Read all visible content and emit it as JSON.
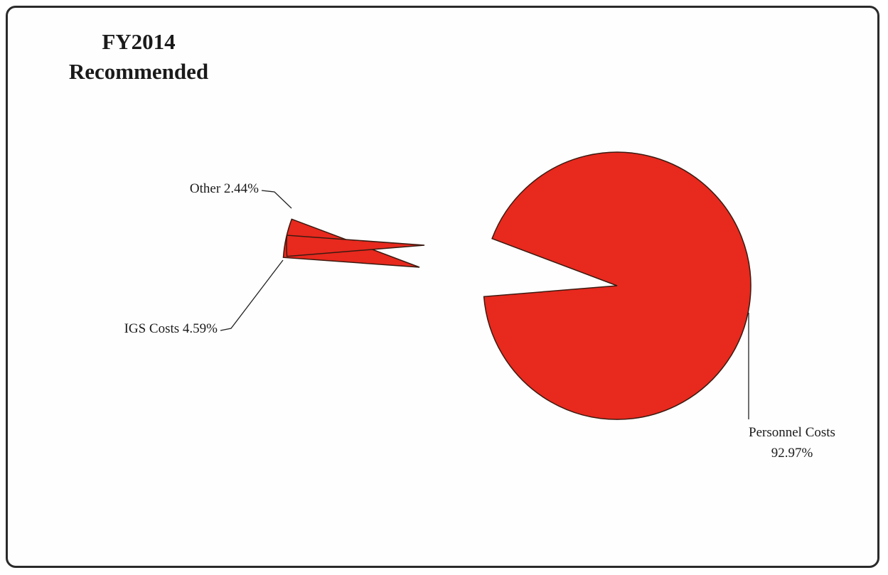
{
  "chart_data": {
    "type": "pie",
    "title": "FY2014",
    "subtitle": "Recommended",
    "slices": [
      {
        "label": "Personnel Costs",
        "value": 92.97,
        "display": "92.97%",
        "color": "#e8291e"
      },
      {
        "label": "IGS Costs",
        "value": 4.59,
        "display": "4.59%",
        "color": "#e8291e"
      },
      {
        "label": "Other",
        "value": 2.44,
        "display": "2.44%",
        "color": "#e8291e"
      }
    ]
  }
}
